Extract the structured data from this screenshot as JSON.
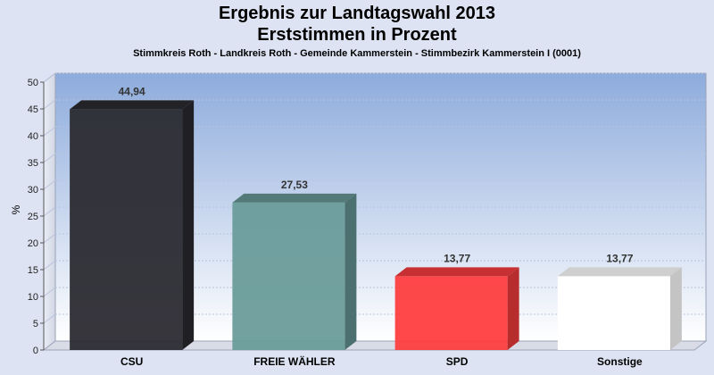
{
  "chart_data": {
    "type": "bar",
    "title": "Ergebnis zur Landtagswahl 2013",
    "title2": "Erststimmen in Prozent",
    "subtitle": "Stimmkreis Roth - Landkreis Roth - Gemeinde Kammerstein - Stimmbezirk Kammerstein I (0001)",
    "ylabel": "%",
    "ylim": [
      0,
      50
    ],
    "yticks": [
      0,
      5,
      10,
      15,
      20,
      25,
      30,
      35,
      40,
      45,
      50
    ],
    "grid": true,
    "categories": [
      "CSU",
      "FREIE WÄHLER",
      "SPD",
      "Sonstige"
    ],
    "values": [
      44.94,
      27.53,
      13.77,
      13.77
    ],
    "value_labels": [
      "44,94",
      "27,53",
      "13,77",
      "13,77"
    ],
    "colors": [
      "#2b2b32",
      "#6a9c9a",
      "#fe3e40",
      "#ffffff"
    ]
  }
}
